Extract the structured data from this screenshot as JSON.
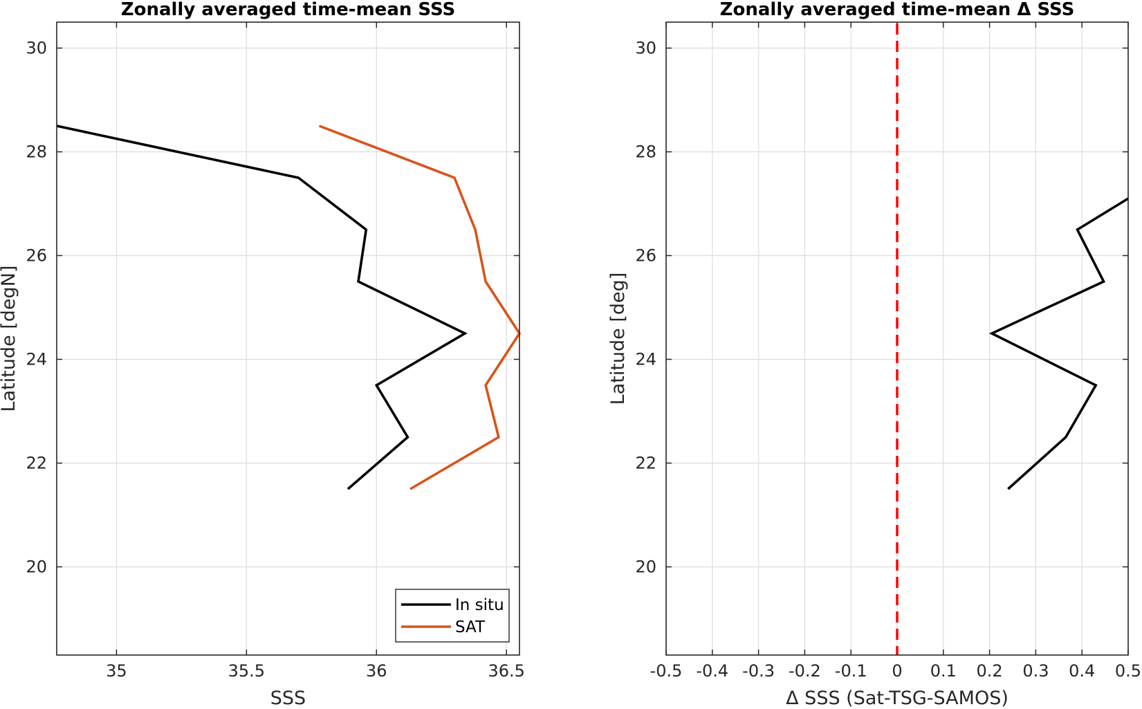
{
  "chart_data": [
    {
      "type": "line",
      "title": "Zonally averaged time-mean SSS",
      "xlabel": "SSS",
      "ylabel": "Latitude [degN]",
      "xlim": [
        34.77,
        36.55
      ],
      "ylim": [
        18.3,
        30.5
      ],
      "xticks": [
        "35",
        "35.5",
        "36",
        "36.5"
      ],
      "yticks": [
        "20",
        "22",
        "24",
        "26",
        "28",
        "30"
      ],
      "grid": true,
      "legend": "bottom-right",
      "series": [
        {
          "name": "In situ",
          "color": "#000000",
          "points": [
            [
              34.77,
              28.5
            ],
            [
              35.7,
              27.5
            ],
            [
              35.96,
              26.5
            ],
            [
              35.93,
              25.5
            ],
            [
              36.34,
              24.5
            ],
            [
              36.0,
              23.5
            ],
            [
              36.12,
              22.5
            ],
            [
              35.89,
              21.5
            ]
          ]
        },
        {
          "name": "SAT",
          "color": "#D95319",
          "points": [
            [
              35.78,
              28.5
            ],
            [
              36.3,
              27.5
            ],
            [
              36.38,
              26.5
            ],
            [
              36.42,
              25.5
            ],
            [
              36.55,
              24.5
            ],
            [
              36.42,
              23.5
            ],
            [
              36.47,
              22.5
            ],
            [
              36.13,
              21.5
            ]
          ]
        }
      ]
    },
    {
      "type": "line",
      "title": "Zonally averaged time-mean Δ SSS",
      "xlabel": "Δ SSS (Sat-TSG-SAMOS)",
      "ylabel": "Latitude [deg]",
      "xlim": [
        -0.5,
        0.5
      ],
      "ylim": [
        18.3,
        30.5
      ],
      "xticks": [
        "-0.5",
        "-0.4",
        "-0.3",
        "-0.2",
        "-0.1",
        "0",
        "0.1",
        "0.2",
        "0.3",
        "0.4",
        "0.5"
      ],
      "yticks": [
        "20",
        "22",
        "24",
        "26",
        "28",
        "30"
      ],
      "grid": true,
      "reference_line": {
        "x": 0,
        "color": "#FF0000",
        "style": "dashed"
      },
      "series": [
        {
          "color": "#000000",
          "points": [
            [
              0.5,
              27.1
            ],
            [
              0.39,
              26.5
            ],
            [
              0.447,
              25.5
            ],
            [
              0.205,
              24.5
            ],
            [
              0.43,
              23.5
            ],
            [
              0.365,
              22.5
            ],
            [
              0.24,
              21.5
            ]
          ]
        }
      ]
    }
  ]
}
